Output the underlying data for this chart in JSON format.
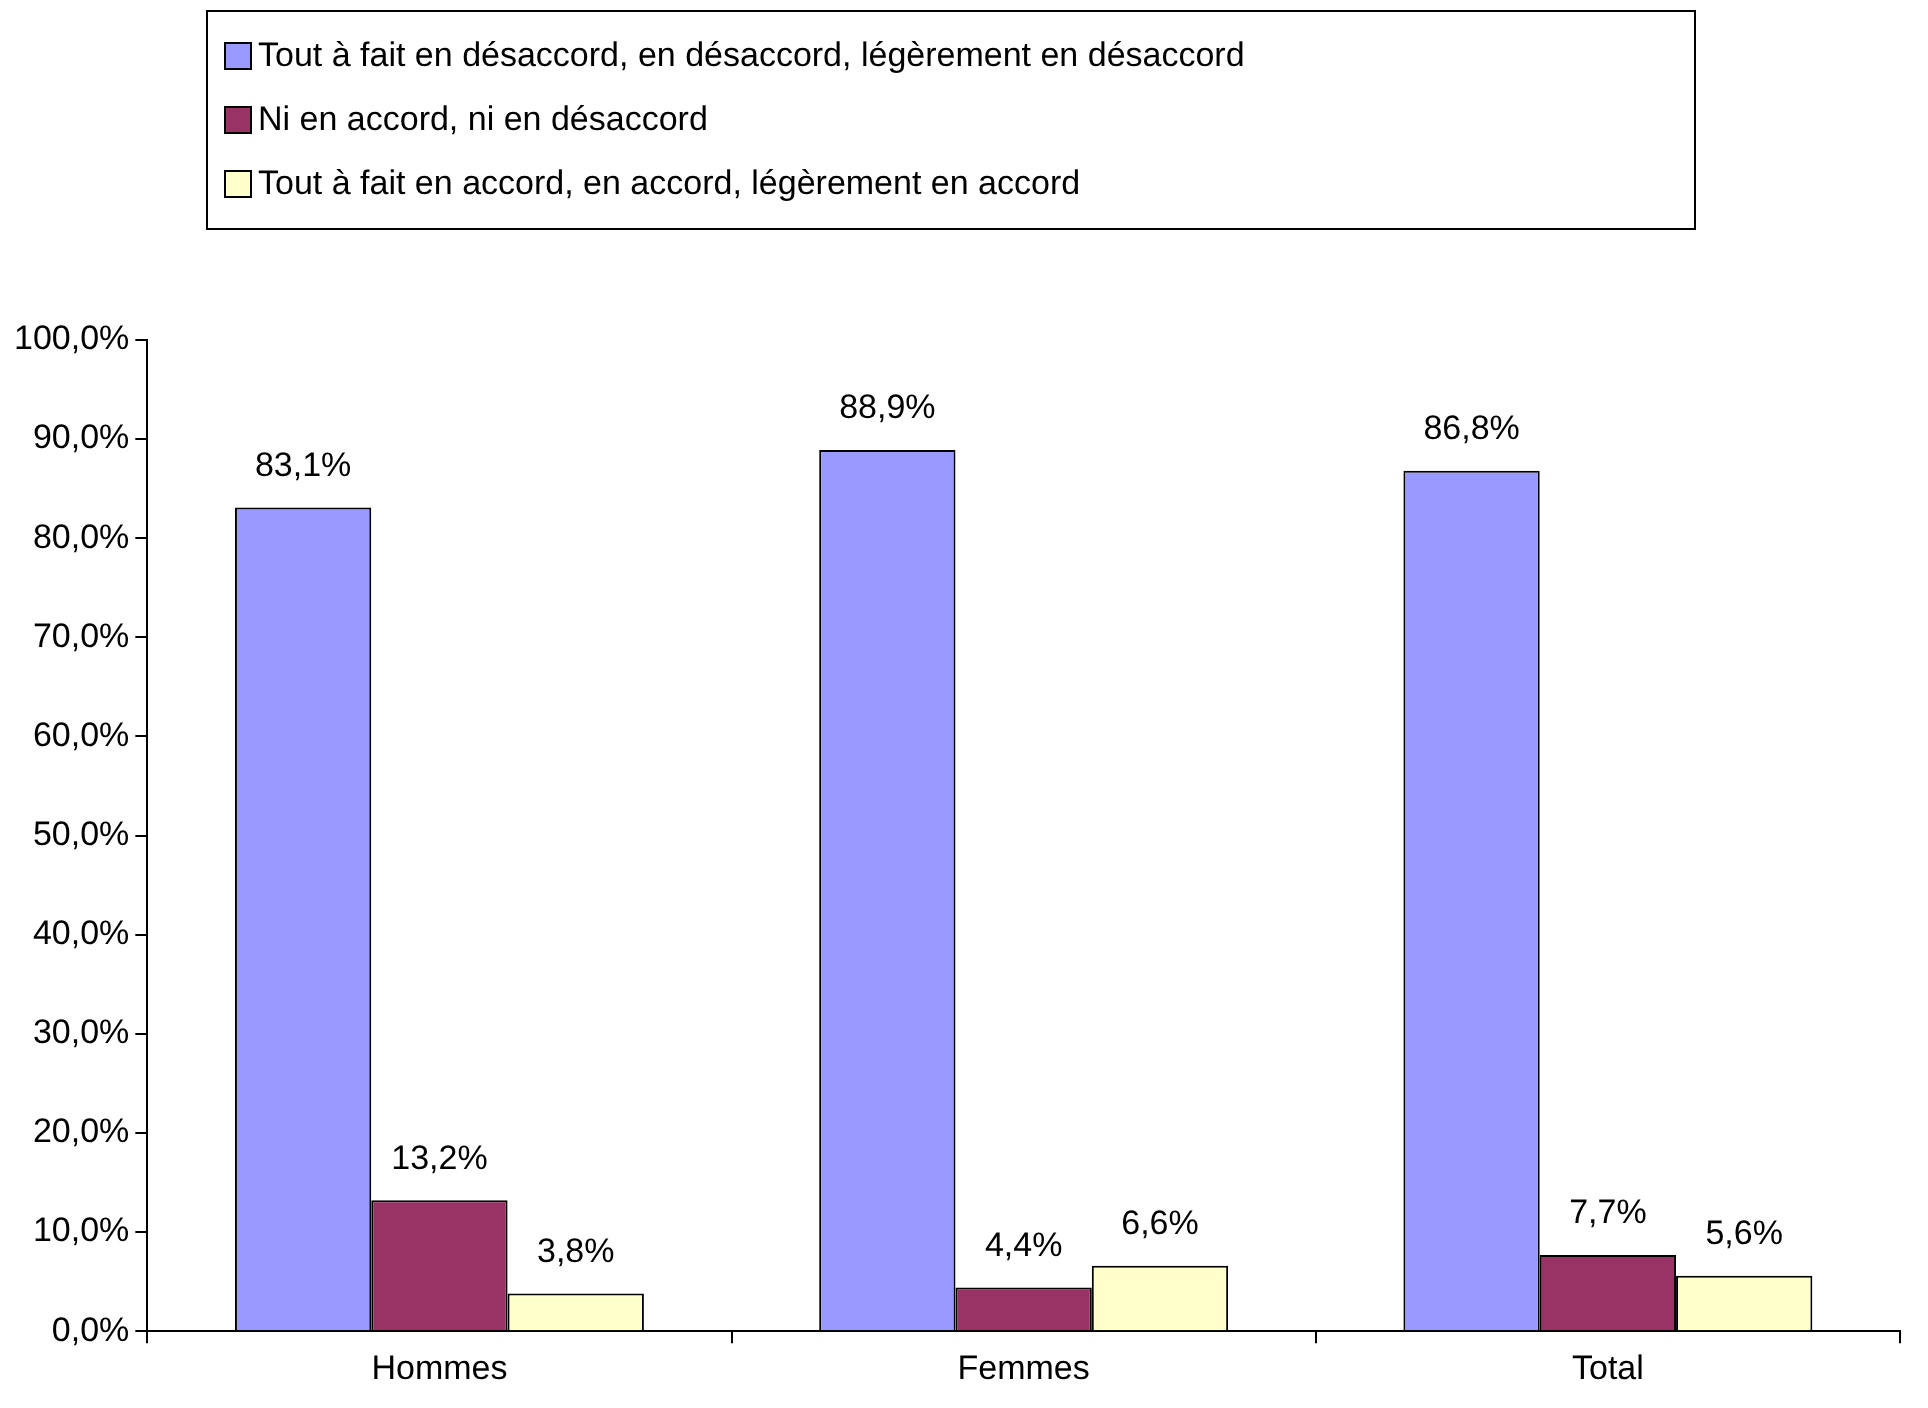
{
  "chart_data": {
    "type": "bar",
    "categories": [
      "Hommes",
      "Femmes",
      "Total"
    ],
    "series": [
      {
        "name": "Tout à fait en désaccord, en désaccord, légèrement en désaccord",
        "color": "#9999ff",
        "values": [
          83.1,
          88.9,
          86.8
        ],
        "value_labels": [
          "83,1%",
          "88,9%",
          "86,8%"
        ]
      },
      {
        "name": "Ni en accord, ni en désaccord",
        "color": "#993366",
        "values": [
          13.2,
          4.4,
          7.7
        ],
        "value_labels": [
          "13,2%",
          "4,4%",
          "7,7%"
        ]
      },
      {
        "name": "Tout à fait en accord, en accord, légèrement en accord",
        "color": "#ffffcc",
        "values": [
          3.8,
          6.6,
          5.6
        ],
        "value_labels": [
          "3,8%",
          "6,6%",
          "5,6%"
        ]
      }
    ],
    "ylim": [
      0,
      100
    ],
    "yticks": [
      {
        "value": 0,
        "label": "0,0%"
      },
      {
        "value": 10,
        "label": "10,0%"
      },
      {
        "value": 20,
        "label": "20,0%"
      },
      {
        "value": 30,
        "label": "30,0%"
      },
      {
        "value": 40,
        "label": "40,0%"
      },
      {
        "value": 50,
        "label": "50,0%"
      },
      {
        "value": 60,
        "label": "60,0%"
      },
      {
        "value": 70,
        "label": "70,0%"
      },
      {
        "value": 80,
        "label": "80,0%"
      },
      {
        "value": 90,
        "label": "90,0%"
      },
      {
        "value": 100,
        "label": "100,0%"
      }
    ],
    "grid": false,
    "legend": "top"
  }
}
